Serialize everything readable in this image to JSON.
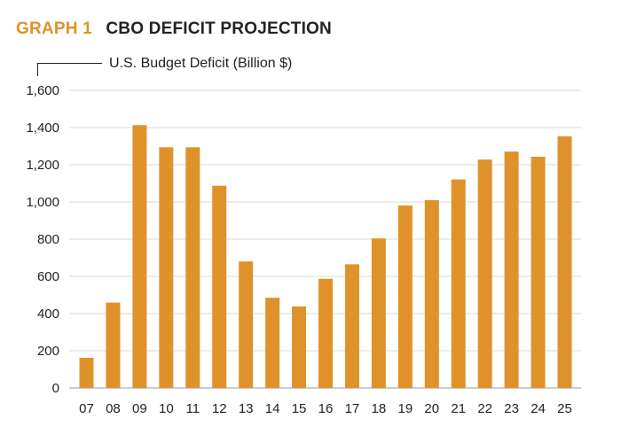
{
  "header": {
    "graph_label": "GRAPH 1",
    "graph_title": "CBO DEFICIT PROJECTION"
  },
  "colors": {
    "bar": "#e0922a",
    "accent": "#e0922a",
    "grid": "#d9d9d9",
    "text": "#222222"
  },
  "chart_data": {
    "type": "bar",
    "title": "CBO DEFICIT PROJECTION",
    "ylabel": "U.S. Budget Deficit (Billion $)",
    "xlabel": "",
    "categories": [
      "07",
      "08",
      "09",
      "10",
      "11",
      "12",
      "13",
      "14",
      "15",
      "16",
      "17",
      "18",
      "19",
      "20",
      "21",
      "22",
      "23",
      "24",
      "25"
    ],
    "values": [
      162,
      459,
      1413,
      1294,
      1294,
      1087,
      680,
      485,
      438,
      587,
      665,
      804,
      981,
      1010,
      1121,
      1228,
      1271,
      1243,
      1353
    ],
    "ylim": [
      0,
      1600
    ],
    "yticks": [
      0,
      200,
      400,
      600,
      800,
      1000,
      1200,
      1400,
      1600
    ],
    "ytick_labels": [
      "0",
      "200",
      "400",
      "600",
      "800",
      "1,000",
      "1,200",
      "1,400",
      "1,600"
    ],
    "grid": true
  }
}
